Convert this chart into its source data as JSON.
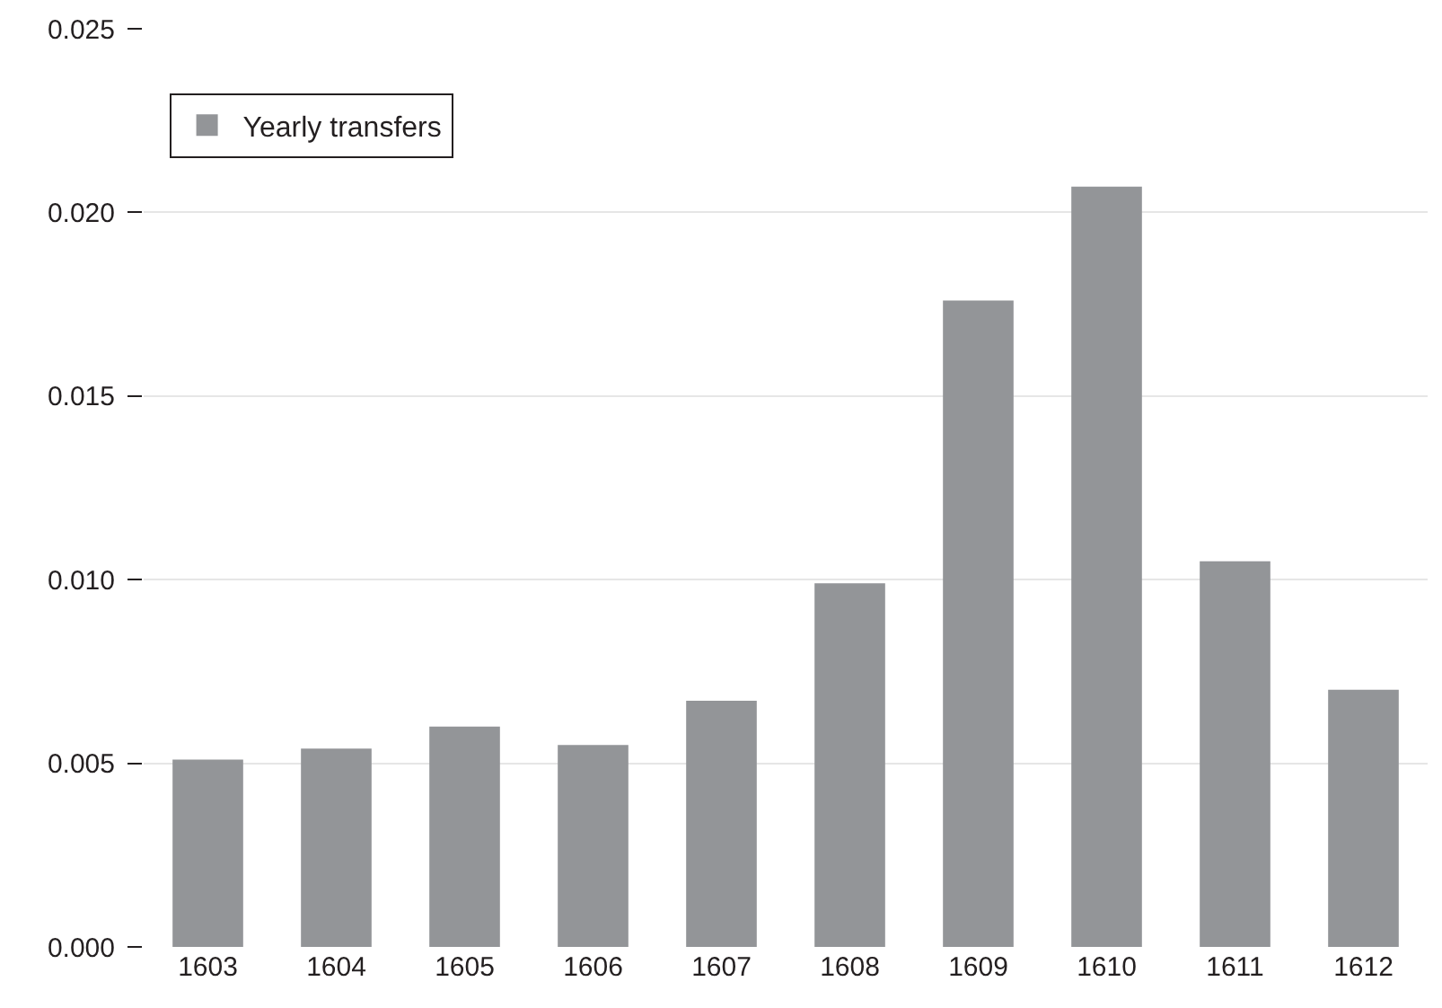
{
  "chart_data": {
    "type": "bar",
    "categories": [
      "1603",
      "1604",
      "1605",
      "1606",
      "1607",
      "1608",
      "1609",
      "1610",
      "1611",
      "1612"
    ],
    "series": [
      {
        "name": "Yearly transfers",
        "color": "#939598",
        "values": [
          0.0051,
          0.0054,
          0.006,
          0.0055,
          0.0067,
          0.0099,
          0.0176,
          0.0207,
          0.0105,
          0.007
        ]
      }
    ],
    "ylim": [
      0,
      0.025
    ],
    "yticks": [
      {
        "value": 0,
        "label": "0.000"
      },
      {
        "value": 0.005,
        "label": "0.005"
      },
      {
        "value": 0.01,
        "label": "0.010"
      },
      {
        "value": 0.015,
        "label": "0.015"
      },
      {
        "value": 0.02,
        "label": "0.020"
      },
      {
        "value": 0.025,
        "label": "0.025"
      }
    ],
    "grid": "y",
    "legend": "top left"
  }
}
